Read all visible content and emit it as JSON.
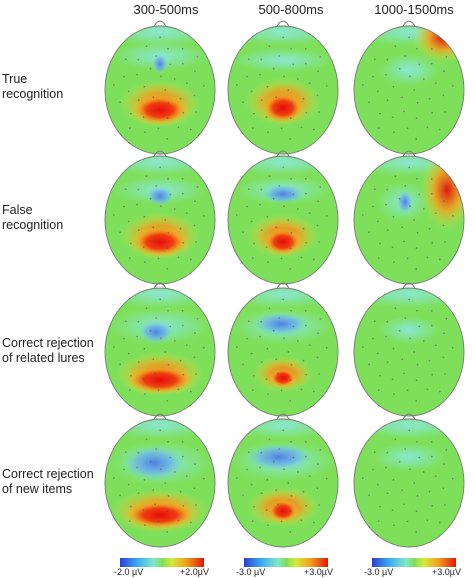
{
  "column_headers": [
    "300-500ms",
    "500-800ms",
    "1000-1500ms"
  ],
  "row_labels": [
    [
      "True",
      "recognition"
    ],
    [
      "False",
      "recognition"
    ],
    [
      "Correct rejection",
      "of related lures"
    ],
    [
      "Correct rejection",
      "of new items"
    ]
  ],
  "colorbars": [
    {
      "min_label": "-2.0 µV",
      "max_label": "+2.0µV"
    },
    {
      "min_label": "-3.0 µV",
      "max_label": "+3.0µV"
    },
    {
      "min_label": "-3.0 µV",
      "max_label": "+3.0µV"
    }
  ],
  "colors": {
    "neutral": "#7ee05a",
    "positive": "#e8140e",
    "negative": "#4f7fe0",
    "outline": "#777777"
  }
}
